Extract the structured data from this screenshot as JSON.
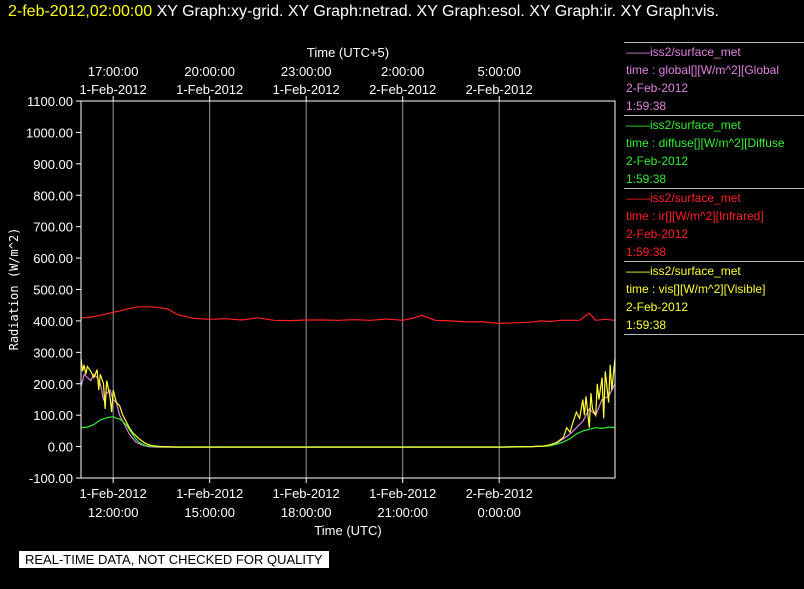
{
  "header": {
    "stamp": "2-feb-2012,02:00:00",
    "graphs": "  XY Graph:xy-grid.  XY Graph:netrad.  XY Graph:esol.  XY Graph:ir.  XY Graph:vis."
  },
  "banner": "REAL-TIME DATA, NOT CHECKED FOR QUALITY",
  "legend": [
    {
      "source": "——iss2/surface_met",
      "variable": "time : global[][W/m^2][Global",
      "date": "2-Feb-2012",
      "time": "1:59:38",
      "color": "#e080e0"
    },
    {
      "source": "——iss2/surface_met",
      "variable": "time : diffuse[][W/m^2][Diffuse",
      "date": "2-Feb-2012",
      "time": "1:59:38",
      "color": "#33ee33"
    },
    {
      "source": "——iss2/surface_met",
      "variable": "time : ir[][W/m^2][Infrared]",
      "date": "2-Feb-2012",
      "time": "1:59:38",
      "color": "#ff2020"
    },
    {
      "source": "——iss2/surface_met",
      "variable": "time : vis[][W/m^2][Visible]",
      "date": "2-Feb-2012",
      "time": "1:59:38",
      "color": "#ffff33"
    }
  ],
  "chart_data": {
    "type": "line",
    "ylabel": "Radiation (W/m^2)",
    "xlabel_bottom": "Time (UTC)",
    "xlabel_top": "Time (UTC+5)",
    "ylim": [
      -100,
      1100
    ],
    "xlim_hours": [
      11.0,
      27.6
    ],
    "x_unit": "hours since 1-Feb-2012 00:00 UTC",
    "yticks": [
      {
        "value": 1100,
        "label": "1100.00"
      },
      {
        "value": 1000,
        "label": "1000.00"
      },
      {
        "value": 900,
        "label": "900.00"
      },
      {
        "value": 800,
        "label": "800.00"
      },
      {
        "value": 700,
        "label": "700.00"
      },
      {
        "value": 600,
        "label": "600.00"
      },
      {
        "value": 500,
        "label": "500.00"
      },
      {
        "value": 400,
        "label": "400.00"
      },
      {
        "value": 300,
        "label": "300.00"
      },
      {
        "value": 200,
        "label": "200.00"
      },
      {
        "value": 100,
        "label": "100.00"
      },
      {
        "value": 0,
        "label": "0.00"
      },
      {
        "value": -100,
        "label": "-100.00"
      }
    ],
    "bottom_ticks": [
      {
        "hour": 12,
        "date": "1-Feb-2012",
        "time": "12:00:00"
      },
      {
        "hour": 15,
        "date": "1-Feb-2012",
        "time": "15:00:00"
      },
      {
        "hour": 18,
        "date": "1-Feb-2012",
        "time": "18:00:00"
      },
      {
        "hour": 21,
        "date": "1-Feb-2012",
        "time": "21:00:00"
      },
      {
        "hour": 24,
        "date": "2-Feb-2012",
        "time": "0:00:00"
      }
    ],
    "top_ticks": [
      {
        "hour": 12,
        "time": "17:00:00",
        "date": "1-Feb-2012"
      },
      {
        "hour": 15,
        "time": "20:00:00",
        "date": "1-Feb-2012"
      },
      {
        "hour": 18,
        "time": "23:00:00",
        "date": "1-Feb-2012"
      },
      {
        "hour": 21,
        "time": "2:00:00",
        "date": "2-Feb-2012"
      },
      {
        "hour": 24,
        "time": "5:00:00",
        "date": "2-Feb-2012"
      }
    ],
    "grid": "vertical",
    "series": [
      {
        "name": "ir",
        "color": "#ff2020",
        "x": [
          11.0,
          11.3,
          11.6,
          11.9,
          12.2,
          12.5,
          12.8,
          13.1,
          13.4,
          13.7,
          14.0,
          14.5,
          15.0,
          15.5,
          16.0,
          16.5,
          17.0,
          17.5,
          18.0,
          18.5,
          19.0,
          19.5,
          20.0,
          20.5,
          21.0,
          21.3,
          21.6,
          22.0,
          22.5,
          23.0,
          23.5,
          24.0,
          24.5,
          25.0,
          25.3,
          25.6,
          25.9,
          26.2,
          26.5,
          26.8,
          27.0,
          27.3,
          27.6
        ],
        "y": [
          410,
          412,
          418,
          425,
          432,
          440,
          445,
          445,
          443,
          438,
          420,
          408,
          405,
          407,
          403,
          410,
          402,
          401,
          403,
          403,
          402,
          404,
          402,
          406,
          402,
          408,
          418,
          402,
          400,
          397,
          397,
          392,
          394,
          396,
          400,
          398,
          402,
          402,
          402,
          425,
          402,
          405,
          402
        ]
      },
      {
        "name": "global",
        "color": "#e080e0",
        "x": [
          11.0,
          11.1,
          11.2,
          11.3,
          11.4,
          11.5,
          11.6,
          11.7,
          11.8,
          11.9,
          12.0,
          12.1,
          12.2,
          12.3,
          12.5,
          12.7,
          12.9,
          13.1,
          13.4,
          14.0,
          16.0,
          20.0,
          24.0,
          25.0,
          25.4,
          25.6,
          25.8,
          26.0,
          26.2,
          26.4,
          26.6,
          26.8,
          27.0,
          27.2,
          27.4,
          27.6
        ],
        "y": [
          190,
          230,
          220,
          210,
          230,
          220,
          200,
          150,
          170,
          180,
          150,
          140,
          100,
          80,
          40,
          15,
          5,
          0,
          -2,
          -2,
          -2,
          -2,
          -2,
          0,
          2,
          5,
          12,
          25,
          40,
          60,
          80,
          120,
          100,
          150,
          160,
          200
        ]
      },
      {
        "name": "diffuse",
        "color": "#33ee33",
        "x": [
          11.0,
          11.2,
          11.4,
          11.6,
          11.8,
          12.0,
          12.1,
          12.2,
          12.3,
          12.4,
          12.5,
          12.6,
          12.7,
          12.8,
          12.9,
          13.0,
          13.2,
          13.4,
          14.0,
          16.0,
          20.0,
          24.0,
          25.0,
          25.4,
          25.6,
          25.8,
          26.0,
          26.2,
          26.4,
          26.6,
          26.8,
          27.0,
          27.2,
          27.4,
          27.6
        ],
        "y": [
          60,
          62,
          70,
          85,
          92,
          95,
          90,
          88,
          80,
          70,
          55,
          40,
          25,
          14,
          8,
          3,
          1,
          0,
          -1,
          -1,
          -1,
          -1,
          0,
          1,
          3,
          8,
          15,
          25,
          40,
          50,
          55,
          60,
          58,
          62,
          60
        ]
      },
      {
        "name": "vis",
        "color": "#ffff33",
        "x": [
          11.0,
          11.05,
          11.1,
          11.15,
          11.2,
          11.3,
          11.4,
          11.5,
          11.55,
          11.6,
          11.7,
          11.75,
          11.8,
          11.9,
          11.95,
          12.0,
          12.1,
          12.2,
          12.3,
          12.4,
          12.5,
          12.6,
          12.8,
          13.0,
          13.2,
          13.5,
          14.0,
          16.0,
          20.0,
          24.0,
          25.0,
          25.4,
          25.6,
          25.8,
          26.0,
          26.1,
          26.2,
          26.3,
          26.4,
          26.5,
          26.6,
          26.65,
          26.7,
          26.8,
          26.85,
          26.9,
          27.0,
          27.05,
          27.1,
          27.2,
          27.25,
          27.3,
          27.4,
          27.45,
          27.5,
          27.6
        ],
        "y": [
          280,
          240,
          260,
          230,
          255,
          240,
          220,
          245,
          180,
          230,
          200,
          120,
          210,
          160,
          110,
          180,
          140,
          130,
          100,
          80,
          60,
          45,
          25,
          10,
          3,
          0,
          -2,
          -2,
          -2,
          -2,
          0,
          2,
          6,
          14,
          30,
          60,
          45,
          80,
          110,
          90,
          150,
          100,
          160,
          60,
          170,
          120,
          100,
          200,
          150,
          220,
          90,
          240,
          140,
          260,
          180,
          280
        ]
      }
    ]
  }
}
